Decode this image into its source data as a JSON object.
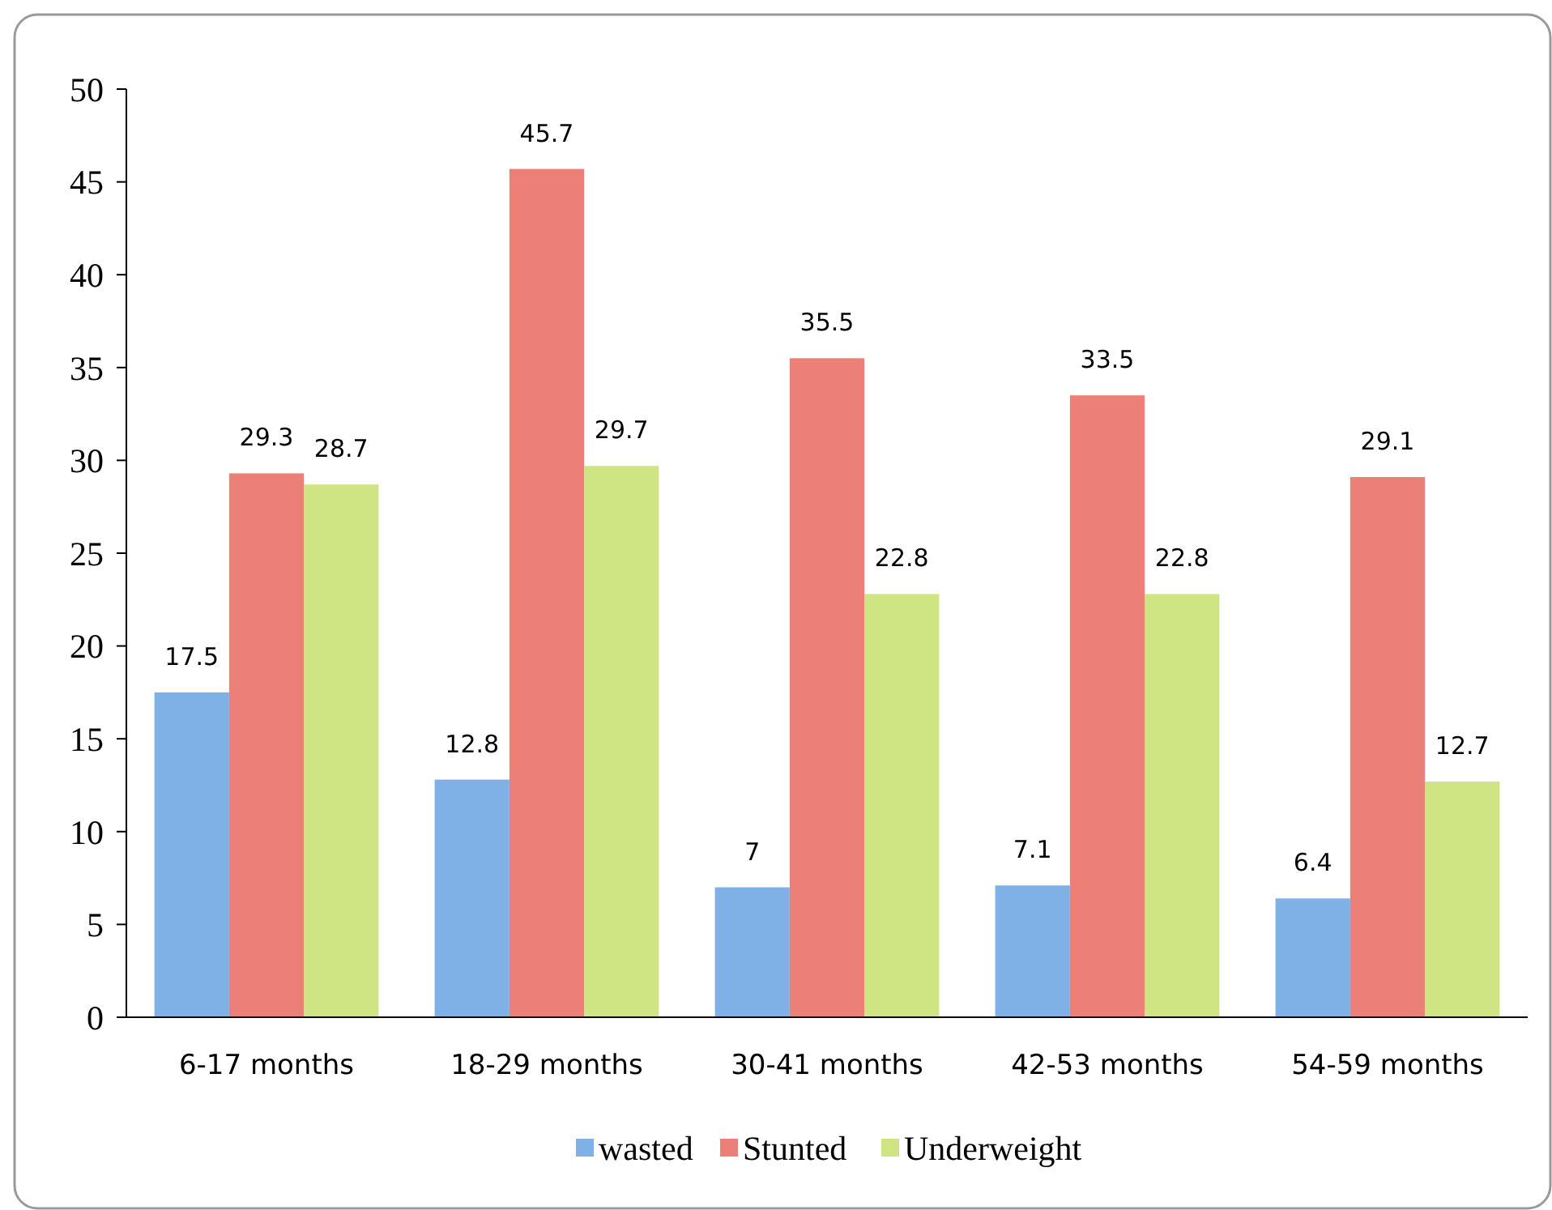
{
  "chart_data": {
    "type": "bar",
    "categories": [
      "6-17 months",
      "18-29 months",
      "30-41 months",
      "42-53 months",
      "54-59 months"
    ],
    "series": [
      {
        "name": "wasted",
        "color": "#7fb0e6",
        "values": [
          17.5,
          12.8,
          7,
          7.1,
          6.4
        ]
      },
      {
        "name": "Stunted",
        "color": "#ec7f78",
        "values": [
          29.3,
          45.7,
          35.5,
          33.5,
          29.1
        ]
      },
      {
        "name": "Underweight",
        "color": "#cfe584",
        "values": [
          28.7,
          29.7,
          22.8,
          22.8,
          12.7
        ]
      }
    ],
    "ylim": [
      0,
      50
    ],
    "yticks": [
      0,
      5,
      10,
      15,
      20,
      25,
      30,
      35,
      40,
      45,
      50
    ],
    "data_labels": true,
    "legend": "bottom",
    "grid": false
  }
}
